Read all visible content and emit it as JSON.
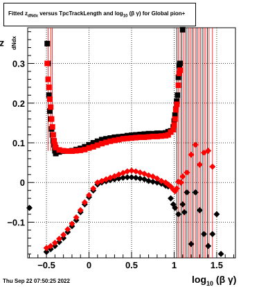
{
  "title": {
    "prefix": "Fitted  z",
    "sub1": "dNdx",
    "middle": "  versus TpcTrackLength and log",
    "sub2": "10",
    "suffix": " (β  γ) for Global pion+"
  },
  "timestamp": "Thu Sep 22 07:50:25 2022",
  "ylabel": {
    "main": "z",
    "sub": "dNdx"
  },
  "xlabel": {
    "main": "log",
    "sub": "10",
    "suffix": " (β γ)"
  },
  "chart_data": {
    "type": "scatter",
    "xlim": [
      -0.72,
      1.72
    ],
    "ylim": [
      -0.19,
      0.39
    ],
    "x_ticks": [
      -0.5,
      0,
      0.5,
      1,
      1.5
    ],
    "x_tick_labels": [
      "−0.5",
      "0",
      "0.5",
      "1",
      "1.5"
    ],
    "y_ticks": [
      -0.1,
      0,
      0.1,
      0.2,
      0.3
    ],
    "y_tick_labels": [
      "−0.1",
      "0",
      "0.1",
      "0.2",
      "0.3"
    ],
    "grid": true,
    "colors": {
      "black": "#000000",
      "red": "#ff0000"
    },
    "series": [
      {
        "marker": "square",
        "color": "#000000",
        "points": [
          [
            -0.49,
            0.35
          ],
          [
            -0.48,
            0.3
          ],
          [
            -0.47,
            0.22
          ],
          [
            -0.46,
            0.18
          ],
          [
            -0.45,
            0.16
          ],
          [
            -0.44,
            0.135
          ],
          [
            -0.43,
            0.12
          ],
          [
            -0.42,
            0.105
          ],
          [
            -0.41,
            0.095
          ],
          [
            -0.4,
            0.08
          ],
          [
            -0.39,
            0.073
          ],
          [
            -0.35,
            0.077
          ],
          [
            -0.3,
            0.079
          ],
          [
            -0.25,
            0.079
          ],
          [
            -0.2,
            0.08
          ],
          [
            -0.15,
            0.083
          ],
          [
            -0.1,
            0.086
          ],
          [
            -0.05,
            0.09
          ],
          [
            0.0,
            0.095
          ],
          [
            0.05,
            0.1
          ],
          [
            0.1,
            0.104
          ],
          [
            0.15,
            0.108
          ],
          [
            0.2,
            0.11
          ],
          [
            0.25,
            0.112
          ],
          [
            0.3,
            0.114
          ],
          [
            0.35,
            0.115
          ],
          [
            0.4,
            0.116
          ],
          [
            0.45,
            0.118
          ],
          [
            0.5,
            0.119
          ],
          [
            0.55,
            0.12
          ],
          [
            0.6,
            0.121
          ],
          [
            0.65,
            0.122
          ],
          [
            0.7,
            0.123
          ],
          [
            0.75,
            0.123
          ],
          [
            0.8,
            0.124
          ],
          [
            0.85,
            0.124
          ],
          [
            0.9,
            0.125
          ],
          [
            0.93,
            0.128
          ],
          [
            0.96,
            0.13
          ],
          [
            0.99,
            0.14
          ],
          [
            1.0,
            0.155
          ],
          [
            1.01,
            0.17
          ],
          [
            1.02,
            0.185
          ],
          [
            1.03,
            0.205
          ],
          [
            1.04,
            0.22
          ],
          [
            1.05,
            0.265
          ],
          [
            1.06,
            0.295
          ],
          [
            1.07,
            0.3
          ],
          [
            1.1,
            0.385
          ]
        ]
      },
      {
        "marker": "square",
        "color": "#ff0000",
        "points": [
          [
            -0.49,
            0.3
          ],
          [
            -0.48,
            0.26
          ],
          [
            -0.47,
            0.24
          ],
          [
            -0.46,
            0.21
          ],
          [
            -0.45,
            0.19
          ],
          [
            -0.44,
            0.16
          ],
          [
            -0.43,
            0.14
          ],
          [
            -0.42,
            0.12
          ],
          [
            -0.41,
            0.105
          ],
          [
            -0.4,
            0.095
          ],
          [
            -0.39,
            0.088
          ],
          [
            -0.35,
            0.082
          ],
          [
            -0.3,
            0.08
          ],
          [
            -0.25,
            0.079
          ],
          [
            -0.2,
            0.079
          ],
          [
            -0.15,
            0.08
          ],
          [
            -0.1,
            0.081
          ],
          [
            -0.05,
            0.083
          ],
          [
            0.0,
            0.087
          ],
          [
            0.05,
            0.09
          ],
          [
            0.1,
            0.094
          ],
          [
            0.15,
            0.098
          ],
          [
            0.2,
            0.101
          ],
          [
            0.25,
            0.104
          ],
          [
            0.3,
            0.106
          ],
          [
            0.35,
            0.108
          ],
          [
            0.4,
            0.11
          ],
          [
            0.45,
            0.111
          ],
          [
            0.5,
            0.112
          ],
          [
            0.55,
            0.113
          ],
          [
            0.6,
            0.114
          ],
          [
            0.65,
            0.114
          ],
          [
            0.7,
            0.115
          ],
          [
            0.75,
            0.116
          ],
          [
            0.8,
            0.116
          ],
          [
            0.85,
            0.117
          ],
          [
            0.9,
            0.118
          ],
          [
            0.93,
            0.12
          ],
          [
            0.96,
            0.127
          ],
          [
            0.99,
            0.133
          ],
          [
            1.0,
            0.145
          ],
          [
            1.01,
            0.16
          ],
          [
            1.02,
            0.183
          ],
          [
            1.03,
            0.197
          ],
          [
            1.05,
            0.245
          ],
          [
            1.06,
            0.275
          ],
          [
            1.07,
            0.283
          ]
        ]
      },
      {
        "marker": "diamond",
        "color": "#000000",
        "points": [
          [
            -0.7,
            -0.064
          ],
          [
            -0.5,
            -0.175
          ],
          [
            -0.45,
            -0.168
          ],
          [
            -0.4,
            -0.16
          ],
          [
            -0.35,
            -0.15
          ],
          [
            -0.3,
            -0.14
          ],
          [
            -0.25,
            -0.125
          ],
          [
            -0.2,
            -0.11
          ],
          [
            -0.15,
            -0.095
          ],
          [
            -0.1,
            -0.075
          ],
          [
            -0.05,
            -0.055
          ],
          [
            0.0,
            -0.037
          ],
          [
            0.05,
            -0.02
          ],
          [
            0.1,
            -0.005
          ],
          [
            0.15,
            0.0
          ],
          [
            0.2,
            0.003
          ],
          [
            0.25,
            0.006
          ],
          [
            0.3,
            0.008
          ],
          [
            0.35,
            0.01
          ],
          [
            0.4,
            0.012
          ],
          [
            0.45,
            0.013
          ],
          [
            0.5,
            0.013
          ],
          [
            0.55,
            0.012
          ],
          [
            0.6,
            0.01
          ],
          [
            0.65,
            0.008
          ],
          [
            0.7,
            0.004
          ],
          [
            0.75,
            0.002
          ],
          [
            0.8,
            0.0
          ],
          [
            0.85,
            -0.003
          ],
          [
            0.9,
            -0.008
          ],
          [
            0.93,
            -0.01
          ],
          [
            0.96,
            -0.04
          ],
          [
            0.99,
            -0.055
          ],
          [
            1.01,
            -0.064
          ],
          [
            1.05,
            -0.08
          ],
          [
            1.1,
            -0.055
          ],
          [
            1.12,
            -0.075
          ],
          [
            1.15,
            -0.025
          ],
          [
            1.2,
            -0.155
          ],
          [
            1.25,
            -0.025
          ],
          [
            1.3,
            -0.07
          ],
          [
            1.35,
            -0.13
          ],
          [
            1.4,
            -0.16
          ],
          [
            1.45,
            -0.13
          ],
          [
            1.5,
            -0.08
          ],
          [
            1.55,
            -0.18
          ]
        ]
      },
      {
        "marker": "diamond",
        "color": "#ff0000",
        "points": [
          [
            -0.5,
            -0.165
          ],
          [
            -0.45,
            -0.16
          ],
          [
            -0.4,
            -0.152
          ],
          [
            -0.35,
            -0.142
          ],
          [
            -0.3,
            -0.132
          ],
          [
            -0.25,
            -0.118
          ],
          [
            -0.2,
            -0.104
          ],
          [
            -0.15,
            -0.088
          ],
          [
            -0.1,
            -0.07
          ],
          [
            -0.05,
            -0.05
          ],
          [
            0.0,
            -0.032
          ],
          [
            0.05,
            -0.015
          ],
          [
            0.1,
            0.0
          ],
          [
            0.15,
            0.004
          ],
          [
            0.2,
            0.008
          ],
          [
            0.25,
            0.012
          ],
          [
            0.3,
            0.016
          ],
          [
            0.35,
            0.02
          ],
          [
            0.4,
            0.024
          ],
          [
            0.45,
            0.028
          ],
          [
            0.5,
            0.03
          ],
          [
            0.55,
            0.028
          ],
          [
            0.6,
            0.025
          ],
          [
            0.65,
            0.022
          ],
          [
            0.7,
            0.018
          ],
          [
            0.75,
            0.015
          ],
          [
            0.8,
            0.01
          ],
          [
            0.85,
            0.004
          ],
          [
            0.9,
            0.0
          ],
          [
            0.93,
            -0.005
          ],
          [
            0.96,
            -0.01
          ],
          [
            0.99,
            -0.018
          ],
          [
            1.01,
            -0.022
          ],
          [
            1.03,
            -0.015
          ],
          [
            1.05,
            0.002
          ],
          [
            1.08,
            0.0
          ],
          [
            1.1,
            0.015
          ],
          [
            1.15,
            0.025
          ],
          [
            1.2,
            0.07
          ],
          [
            1.25,
            0.095
          ],
          [
            1.3,
            0.045
          ],
          [
            1.35,
            0.075
          ],
          [
            1.4,
            0.08
          ],
          [
            1.45,
            0.04
          ]
        ]
      }
    ]
  }
}
